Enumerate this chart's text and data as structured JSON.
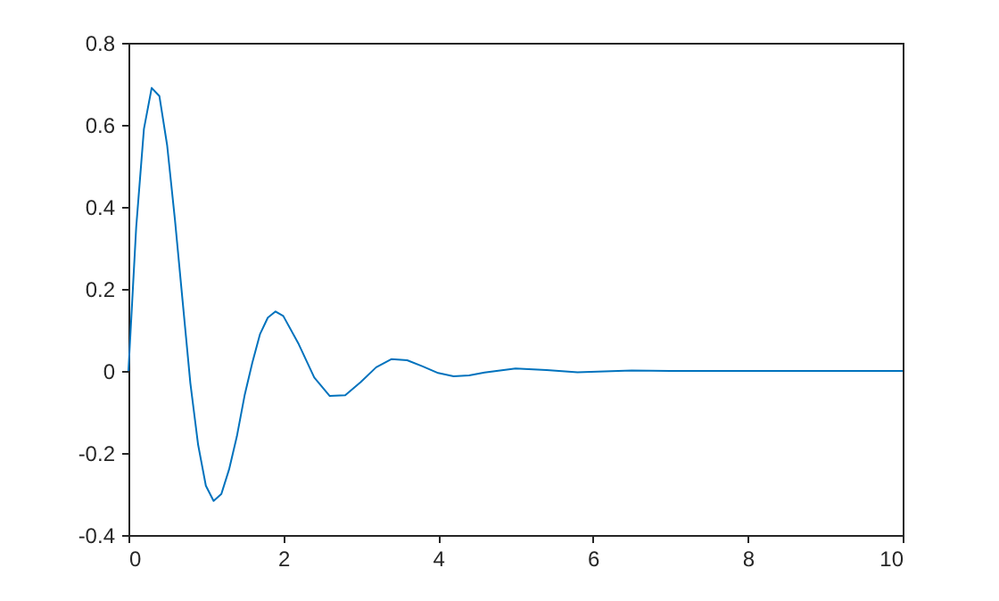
{
  "chart_data": {
    "type": "line",
    "x": [
      0,
      0.1,
      0.2,
      0.3,
      0.4,
      0.5,
      0.6,
      0.7,
      0.8,
      0.9,
      1.0,
      1.1,
      1.2,
      1.3,
      1.4,
      1.5,
      1.6,
      1.7,
      1.8,
      1.9,
      2.0,
      2.2,
      2.4,
      2.6,
      2.8,
      3.0,
      3.2,
      3.4,
      3.6,
      3.8,
      4.0,
      4.2,
      4.4,
      4.6,
      5.0,
      5.4,
      5.8,
      6.5,
      7,
      8,
      9,
      10
    ],
    "series": [
      {
        "color": "#0072bd",
        "values": [
          0,
          0.35,
          0.59,
          0.69,
          0.67,
          0.55,
          0.37,
          0.17,
          -0.03,
          -0.18,
          -0.28,
          -0.317,
          -0.3,
          -0.24,
          -0.16,
          -0.06,
          0.02,
          0.09,
          0.13,
          0.145,
          0.134,
          0.065,
          -0.016,
          -0.061,
          -0.059,
          -0.027,
          0.009,
          0.029,
          0.026,
          0.011,
          -0.005,
          -0.013,
          -0.011,
          -0.004,
          0.006,
          0.002,
          -0.003,
          0.001,
          0,
          0,
          0,
          0
        ]
      }
    ],
    "xlim": [
      0,
      10
    ],
    "xticks": [
      0,
      2,
      4,
      6,
      8,
      10
    ],
    "ylim": [
      -0.4,
      0.8
    ],
    "yticks": [
      -0.4,
      -0.2,
      0,
      0.2,
      0.4,
      0.6,
      0.8
    ],
    "grid": false,
    "marker": "none",
    "line_style": "solid"
  }
}
